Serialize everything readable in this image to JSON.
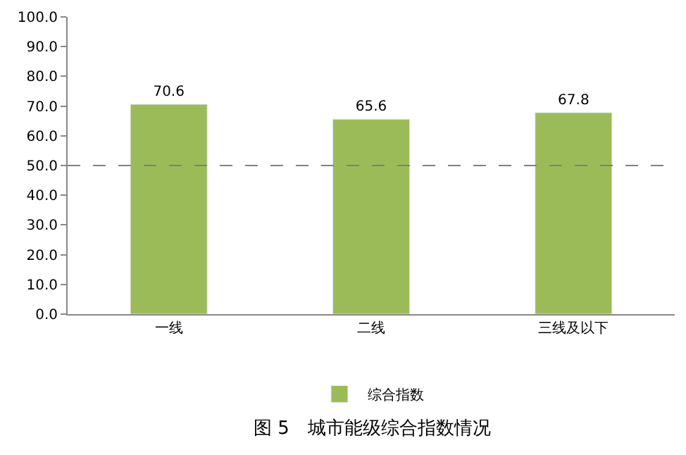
{
  "chart_data": {
    "type": "bar",
    "title": "图 5　城市能级综合指数情况",
    "categories": [
      "一线",
      "二线",
      "三线及以下"
    ],
    "series": [
      {
        "name": "综合指数",
        "color": "#9bbb59",
        "values": [
          70.6,
          65.6,
          67.8
        ]
      }
    ],
    "ylim": [
      0,
      100
    ],
    "yticks": [
      {
        "value": 0,
        "label": "0.0"
      },
      {
        "value": 10,
        "label": "10.0"
      },
      {
        "value": 20,
        "label": "20.0"
      },
      {
        "value": 30,
        "label": "30.0"
      },
      {
        "value": 40,
        "label": "40.0"
      },
      {
        "value": 50,
        "label": "50.0"
      },
      {
        "value": 60,
        "label": "60.0"
      },
      {
        "value": 70,
        "label": "70.0"
      },
      {
        "value": 80,
        "label": "80.0"
      },
      {
        "value": 90,
        "label": "90.0"
      },
      {
        "value": 100,
        "label": "100.0"
      }
    ],
    "ref_lines": [
      {
        "axis": "y",
        "value": 50,
        "label": null,
        "color": "#808080",
        "line_style": "dashed"
      }
    ],
    "data_labels": true,
    "legend": "bottom",
    "grid": false
  }
}
